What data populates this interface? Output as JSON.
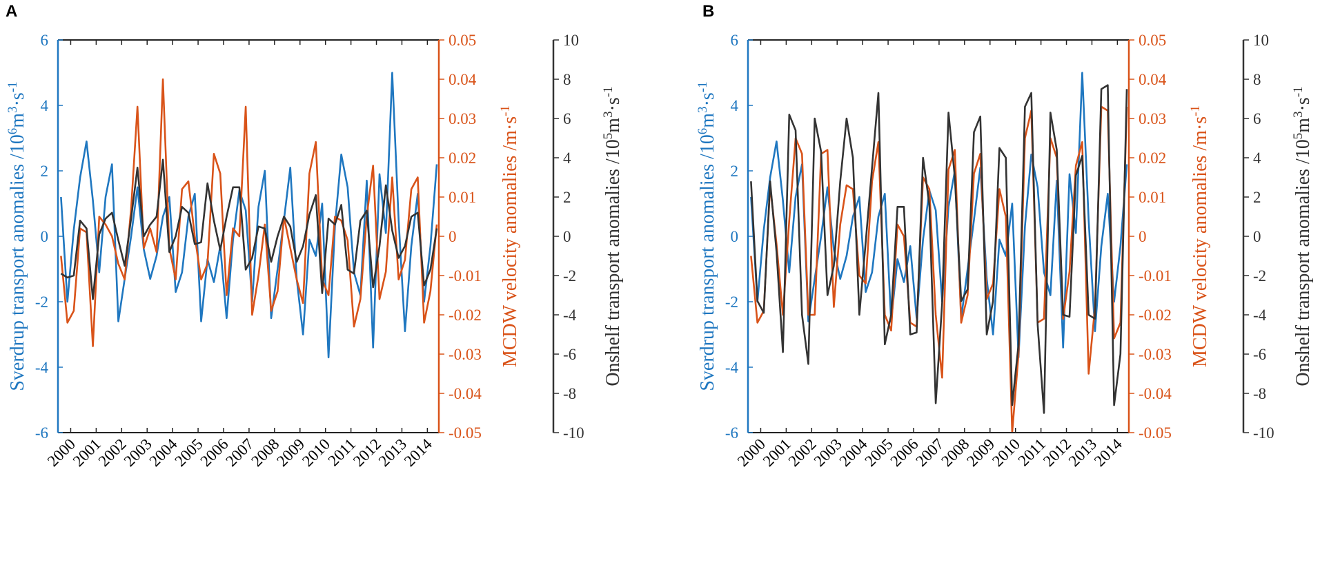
{
  "panels": [
    {
      "label": "A",
      "left_axis": {
        "label": "Sverdrup transport anomalies /10⁶m³·s⁻¹",
        "ticks": [
          "6",
          "4",
          "2",
          "0",
          "-2",
          "-4",
          "-6"
        ],
        "color": "#1f77c0"
      },
      "middle_axis": {
        "label": "MCDW velocity anomalies /m·s⁻¹",
        "ticks": [
          "0.05",
          "0.04",
          "0.03",
          "0.02",
          "0.01",
          "0",
          "-0.01",
          "-0.02",
          "-0.03",
          "-0.04",
          "-0.05"
        ],
        "color": "#d95319"
      },
      "right_axis": {
        "label": "Onshelf transport anomalies /10⁵m³·s⁻¹",
        "ticks": [
          "10",
          "8",
          "6",
          "4",
          "2",
          "0",
          "-2",
          "-4",
          "-6",
          "-8",
          "-10"
        ],
        "color": "#333333"
      },
      "x_ticks": [
        "2000",
        "2001",
        "2002",
        "2003",
        "2004",
        "2005",
        "2006",
        "2007",
        "2008",
        "2009",
        "2010",
        "2011",
        "2012",
        "2013",
        "2014"
      ]
    },
    {
      "label": "B",
      "left_axis": {
        "label": "Sverdrup transport anomalies /10⁶m³·s⁻¹",
        "ticks": [
          "6",
          "4",
          "2",
          "0",
          "-2",
          "-4",
          "-6"
        ],
        "color": "#1f77c0"
      },
      "middle_axis": {
        "label": "MCDW velocity anomalies /m·s⁻¹",
        "ticks": [
          "0.05",
          "0.04",
          "0.03",
          "0.02",
          "0.01",
          "0",
          "-0.01",
          "-0.02",
          "-0.03",
          "-0.04",
          "-0.05"
        ],
        "color": "#d95319"
      },
      "right_axis": {
        "label": "Onshelf transport anomalies /10⁵m³·s⁻¹",
        "ticks": [
          "10",
          "8",
          "6",
          "4",
          "2",
          "0",
          "-2",
          "-4",
          "-6",
          "-8",
          "-10"
        ],
        "color": "#333333"
      },
      "x_ticks": [
        "2000",
        "2001",
        "2002",
        "2003",
        "2004",
        "2005",
        "2006",
        "2007",
        "2008",
        "2009",
        "2010",
        "2011",
        "2012",
        "2013",
        "2014"
      ]
    }
  ],
  "chart_data": [
    {
      "type": "line",
      "panel": "A",
      "x": [
        1999.62,
        1999.87,
        2000.12,
        2000.37,
        2000.62,
        2000.87,
        2001.12,
        2001.37,
        2001.62,
        2001.87,
        2002.12,
        2002.37,
        2002.62,
        2002.87,
        2003.12,
        2003.37,
        2003.62,
        2003.87,
        2004.12,
        2004.37,
        2004.62,
        2004.87,
        2005.12,
        2005.37,
        2005.62,
        2005.87,
        2006.12,
        2006.37,
        2006.62,
        2006.87,
        2007.12,
        2007.37,
        2007.62,
        2007.87,
        2008.12,
        2008.37,
        2008.62,
        2008.87,
        2009.12,
        2009.37,
        2009.62,
        2009.87,
        2010.12,
        2010.37,
        2010.62,
        2010.87,
        2011.12,
        2011.37,
        2011.62,
        2011.87,
        2012.12,
        2012.37,
        2012.62,
        2012.87,
        2013.12,
        2013.37,
        2013.62,
        2013.87,
        2014.12,
        2014.37
      ],
      "xlim": [
        1999.5,
        2014.45
      ],
      "series": [
        {
          "name": "Sverdrup transport anomalies",
          "axis": "left",
          "ylim": [
            -6,
            6
          ],
          "color": "#1f77c0",
          "values": [
            1.2,
            -2.0,
            0.2,
            1.8,
            2.9,
            1.1,
            -1.1,
            1.2,
            2.2,
            -2.6,
            -1.3,
            0.0,
            1.5,
            -0.4,
            -1.3,
            -0.6,
            0.6,
            1.2,
            -1.7,
            -1.1,
            0.6,
            1.3,
            -2.6,
            -0.7,
            -1.4,
            -0.3,
            -2.5,
            -0.1,
            1.4,
            0.8,
            -2.0,
            0.9,
            2.0,
            -2.5,
            -1.0,
            0.5,
            2.1,
            -1.3,
            -3.0,
            -0.1,
            -0.6,
            1.0,
            -3.7,
            0.3,
            2.5,
            1.5,
            -1.1,
            -1.8,
            1.7,
            -3.4,
            1.9,
            0.1,
            5.0,
            0.5,
            -2.9,
            -0.3,
            1.3,
            -2.0,
            -0.3,
            2.2
          ]
        },
        {
          "name": "MCDW velocity anomalies",
          "axis": "middle",
          "ylim": [
            -0.05,
            0.05
          ],
          "color": "#d95319",
          "values": [
            -0.005,
            -0.022,
            -0.019,
            0.002,
            0.001,
            -0.028,
            0.005,
            0.003,
            0.0,
            -0.007,
            -0.011,
            0.007,
            0.033,
            -0.003,
            0.002,
            -0.004,
            0.04,
            -0.003,
            -0.011,
            0.012,
            0.014,
            0.0,
            -0.011,
            -0.007,
            0.021,
            0.016,
            -0.015,
            0.002,
            0.0,
            0.033,
            -0.02,
            -0.01,
            0.003,
            -0.019,
            -0.014,
            0.005,
            -0.003,
            -0.011,
            -0.017,
            0.016,
            0.024,
            -0.011,
            -0.015,
            0.005,
            0.004,
            -0.001,
            -0.023,
            -0.016,
            0.005,
            0.018,
            -0.016,
            -0.009,
            0.015,
            -0.011,
            -0.006,
            0.012,
            0.015,
            -0.022,
            -0.014,
            0.003
          ]
        },
        {
          "name": "Onshelf transport anomalies",
          "axis": "right",
          "ylim": [
            -10,
            10
          ],
          "color": "#333333",
          "values": [
            -1.9,
            -2.1,
            -2.0,
            0.8,
            0.4,
            -3.2,
            0.1,
            0.9,
            1.2,
            -0.2,
            -1.5,
            0.9,
            3.5,
            0.0,
            0.6,
            1.0,
            3.9,
            -0.8,
            0.0,
            1.5,
            1.2,
            -0.4,
            -0.3,
            2.7,
            0.8,
            -0.7,
            1.0,
            2.5,
            2.5,
            -1.7,
            -1.1,
            0.5,
            0.4,
            -1.3,
            0.0,
            1.0,
            0.5,
            -1.3,
            -0.5,
            1.1,
            2.1,
            -2.9,
            0.9,
            0.6,
            1.6,
            -1.7,
            -1.9,
            0.8,
            1.3,
            -2.6,
            -0.5,
            2.6,
            0.3,
            -1.1,
            -0.5,
            1.0,
            1.2,
            -2.5,
            -1.7,
            0.4
          ]
        }
      ]
    },
    {
      "type": "line",
      "panel": "B",
      "x": [
        1999.62,
        1999.87,
        2000.12,
        2000.37,
        2000.62,
        2000.87,
        2001.12,
        2001.37,
        2001.62,
        2001.87,
        2002.12,
        2002.37,
        2002.62,
        2002.87,
        2003.12,
        2003.37,
        2003.62,
        2003.87,
        2004.12,
        2004.37,
        2004.62,
        2004.87,
        2005.12,
        2005.37,
        2005.62,
        2005.87,
        2006.12,
        2006.37,
        2006.62,
        2006.87,
        2007.12,
        2007.37,
        2007.62,
        2007.87,
        2008.12,
        2008.37,
        2008.62,
        2008.87,
        2009.12,
        2009.37,
        2009.62,
        2009.87,
        2010.12,
        2010.37,
        2010.62,
        2010.87,
        2011.12,
        2011.37,
        2011.62,
        2011.87,
        2012.12,
        2012.37,
        2012.62,
        2012.87,
        2013.12,
        2013.37,
        2013.62,
        2013.87,
        2014.12,
        2014.37
      ],
      "xlim": [
        1999.5,
        2014.45
      ],
      "series": [
        {
          "name": "Sverdrup transport anomalies",
          "axis": "left",
          "ylim": [
            -6,
            6
          ],
          "color": "#1f77c0",
          "values": [
            1.2,
            -2.0,
            0.2,
            1.8,
            2.9,
            1.1,
            -1.1,
            1.2,
            2.2,
            -2.6,
            -1.3,
            0.0,
            1.5,
            -0.4,
            -1.3,
            -0.6,
            0.6,
            1.2,
            -1.7,
            -1.1,
            0.6,
            1.3,
            -2.6,
            -0.7,
            -1.4,
            -0.3,
            -2.5,
            -0.1,
            1.4,
            0.8,
            -2.0,
            0.9,
            2.0,
            -2.5,
            -1.0,
            0.5,
            2.1,
            -1.3,
            -3.0,
            -0.1,
            -0.6,
            1.0,
            -3.7,
            0.3,
            2.5,
            1.5,
            -1.1,
            -1.8,
            1.7,
            -3.4,
            1.9,
            0.1,
            5.0,
            0.5,
            -2.9,
            -0.3,
            1.3,
            -2.0,
            -0.3,
            2.2
          ]
        },
        {
          "name": "MCDW velocity anomalies",
          "axis": "middle",
          "ylim": [
            -0.05,
            0.05
          ],
          "color": "#d95319",
          "values": [
            -0.005,
            -0.022,
            -0.019,
            0.013,
            -0.002,
            -0.02,
            0.004,
            0.025,
            0.021,
            -0.02,
            -0.02,
            0.021,
            0.022,
            -0.018,
            0.003,
            0.013,
            0.012,
            -0.01,
            -0.012,
            0.014,
            0.024,
            -0.02,
            -0.024,
            0.003,
            0.0,
            -0.022,
            -0.023,
            0.015,
            0.012,
            -0.02,
            -0.036,
            0.017,
            0.022,
            -0.022,
            -0.015,
            0.016,
            0.021,
            -0.016,
            -0.012,
            0.012,
            0.005,
            -0.05,
            -0.03,
            0.025,
            0.032,
            -0.022,
            -0.021,
            0.025,
            0.02,
            -0.021,
            -0.009,
            0.018,
            0.024,
            -0.035,
            -0.018,
            0.033,
            0.032,
            -0.026,
            -0.022,
            0.033
          ]
        },
        {
          "name": "Onshelf transport anomalies",
          "axis": "right",
          "ylim": [
            -10,
            10
          ],
          "color": "#333333",
          "values": [
            2.8,
            -3.3,
            -3.9,
            2.8,
            -0.8,
            -5.9,
            6.2,
            5.4,
            -4.0,
            -6.5,
            6.0,
            4.3,
            -3.0,
            -1.5,
            2.8,
            6.0,
            4.0,
            -4.0,
            -0.3,
            3.5,
            7.3,
            -5.5,
            -4.0,
            1.5,
            1.5,
            -5.0,
            -4.9,
            4.0,
            1.6,
            -8.5,
            -3.4,
            6.3,
            3.0,
            -3.3,
            -2.7,
            5.3,
            6.1,
            -5.0,
            -3.3,
            4.5,
            4.0,
            -8.6,
            -5.5,
            6.6,
            7.3,
            -4.5,
            -9.0,
            6.3,
            4.4,
            -4.0,
            -4.1,
            3.1,
            4.1,
            -4.0,
            -4.2,
            7.5,
            7.7,
            -8.6,
            -6.0,
            7.5
          ]
        }
      ]
    }
  ]
}
